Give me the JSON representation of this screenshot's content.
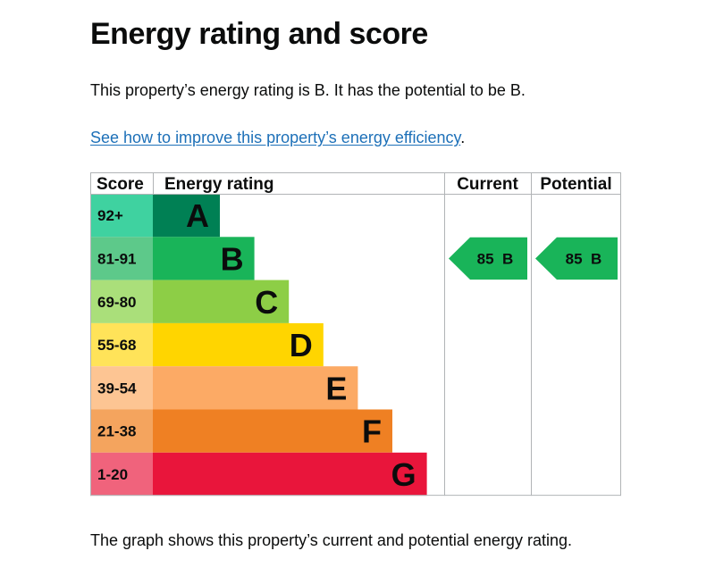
{
  "page": {
    "title": "Energy rating and score",
    "summary": "This property’s energy rating is B. It has the potential to be B.",
    "link_text": "See how to improve this property’s energy efficiency",
    "link_suffix": ".",
    "caption": "The graph shows this property’s current and potential energy rating."
  },
  "chart_data": {
    "type": "bar",
    "headers": {
      "score": "Score",
      "rating": "Energy rating",
      "current": "Current",
      "potential": "Potential"
    },
    "bands": [
      {
        "letter": "A",
        "range": "92+",
        "color": "#008054",
        "score_color": "#3fd2a0"
      },
      {
        "letter": "B",
        "range": "81-91",
        "color": "#19b459",
        "score_color": "#5dc98a"
      },
      {
        "letter": "C",
        "range": "69-80",
        "color": "#8dce46",
        "score_color": "#aadf7a"
      },
      {
        "letter": "D",
        "range": "55-68",
        "color": "#ffd500",
        "score_color": "#ffe359"
      },
      {
        "letter": "E",
        "range": "39-54",
        "color": "#fcaa65",
        "score_color": "#fdc593"
      },
      {
        "letter": "F",
        "range": "21-38",
        "color": "#ef8023",
        "score_color": "#f4a45e"
      },
      {
        "letter": "G",
        "range": "1-20",
        "color": "#e9153b",
        "score_color": "#f0637c"
      }
    ],
    "current": {
      "score": 85,
      "band": "B"
    },
    "potential": {
      "score": 85,
      "band": "B"
    }
  }
}
